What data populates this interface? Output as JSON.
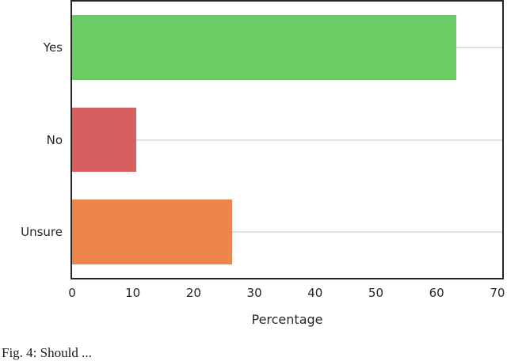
{
  "chart_data": {
    "type": "bar",
    "orientation": "horizontal",
    "title": "",
    "xlabel": "Percentage",
    "ylabel": "",
    "categories": [
      "Yes",
      "No",
      "Unsure"
    ],
    "values": [
      63.2,
      10.5,
      26.3
    ],
    "bar_colors": [
      "#6ACC64",
      "#D65F5F",
      "#EE854A"
    ],
    "xticks": [
      0,
      10,
      20,
      30,
      40,
      50,
      60,
      70
    ],
    "xlim": [
      0,
      70.8
    ],
    "bar_thickness_fraction": 0.7,
    "grid": "horizontal_lines_at_category_ticks",
    "grid_color": "#e1e1e1",
    "spine_color": "#262626",
    "text_color": "#262626",
    "background_color": "#ffffff",
    "legend": "none"
  },
  "caption": {
    "text": "Fig. 4: Should ..."
  }
}
